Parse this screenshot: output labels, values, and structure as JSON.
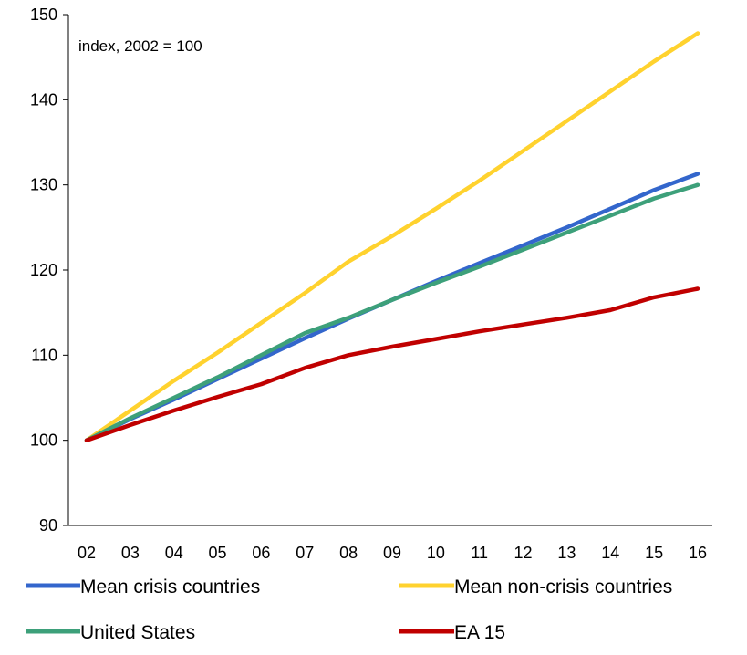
{
  "chart_data": {
    "type": "line",
    "annotation": "index, 2002 = 100",
    "title": "",
    "xlabel": "",
    "ylabel": "",
    "categories": [
      "02",
      "03",
      "04",
      "05",
      "06",
      "07",
      "08",
      "09",
      "10",
      "11",
      "12",
      "13",
      "14",
      "15",
      "16"
    ],
    "ylim": [
      90,
      150
    ],
    "yticks": [
      90,
      100,
      110,
      120,
      130,
      140,
      150
    ],
    "grid": false,
    "legend_position": "bottom",
    "series": [
      {
        "name": "Mean crisis countries",
        "color": "#3366CC",
        "values": [
          100,
          102.5,
          104.8,
          107.2,
          109.6,
          112.0,
          114.3,
          116.5,
          118.7,
          120.8,
          122.9,
          125.0,
          127.2,
          129.4,
          131.3
        ]
      },
      {
        "name": "Mean non-crisis countries",
        "color": "#FFD22E",
        "values": [
          100,
          103.5,
          107.0,
          110.3,
          113.8,
          117.3,
          121.0,
          124.0,
          127.2,
          130.5,
          134.0,
          137.5,
          141.0,
          144.5,
          147.8
        ]
      },
      {
        "name": "United States",
        "color": "#3DA07A",
        "values": [
          100,
          102.6,
          105.0,
          107.4,
          110.0,
          112.6,
          114.4,
          116.5,
          118.5,
          120.4,
          122.4,
          124.4,
          126.4,
          128.4,
          130.0
        ]
      },
      {
        "name": "EA 15",
        "color": "#C00000",
        "values": [
          100,
          101.8,
          103.5,
          105.1,
          106.6,
          108.5,
          110.0,
          111.0,
          111.9,
          112.8,
          113.6,
          114.4,
          115.3,
          116.8,
          117.8
        ]
      }
    ]
  }
}
